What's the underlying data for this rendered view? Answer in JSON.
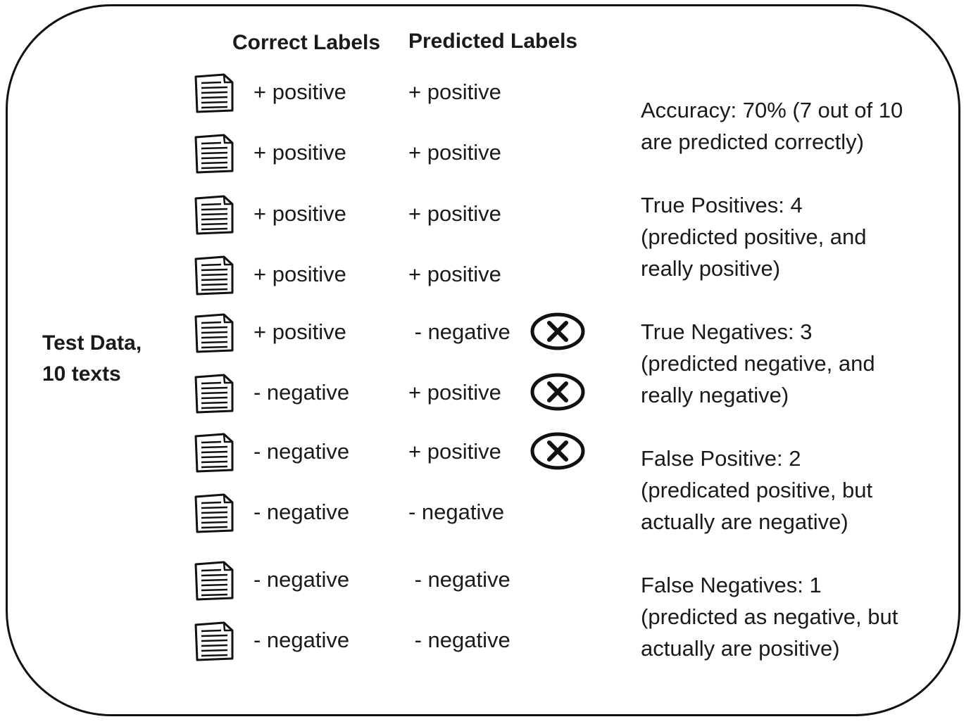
{
  "headers": {
    "correct": "Correct Labels",
    "predicted": "Predicted Labels"
  },
  "side_label": {
    "line1": "Test Data,",
    "line2": "10 texts"
  },
  "rows": [
    {
      "correct": "+ positive",
      "predicted": "+ positive",
      "error": false
    },
    {
      "correct": "+ positive",
      "predicted": "+ positive",
      "error": false
    },
    {
      "correct": "+ positive",
      "predicted": "+ positive",
      "error": false
    },
    {
      "correct": "+ positive",
      "predicted": "+ positive",
      "error": false
    },
    {
      "correct": "+ positive",
      "predicted": " - negative",
      "error": true
    },
    {
      "correct": "- negative",
      "predicted": "+ positive",
      "error": true
    },
    {
      "correct": "- negative",
      "predicted": "+ positive",
      "error": true
    },
    {
      "correct": "- negative",
      "predicted": "- negative",
      "error": false
    },
    {
      "correct": "- negative",
      "predicted": " - negative",
      "error": false
    },
    {
      "correct": "- negative",
      "predicted": " - negative",
      "error": false
    }
  ],
  "icons": {
    "document": "document-icon",
    "error": "x-circle-icon"
  },
  "metrics": [
    {
      "lines": [
        "Accuracy: 70% (7 out of 10",
        "are predicted correctly)"
      ]
    },
    {
      "lines": [
        "True Positives: 4",
        "(predicted positive, and",
        "really positive)"
      ]
    },
    {
      "lines": [
        "True Negatives: 3",
        "(predicted negative, and",
        "really negative)"
      ]
    },
    {
      "lines": [
        "False Positive: 2",
        "(predicated positive, but",
        "actually are negative)"
      ]
    },
    {
      "lines": [
        "False Negatives: 1",
        "(predicted as negative, but",
        "actually are positive)"
      ]
    }
  ]
}
